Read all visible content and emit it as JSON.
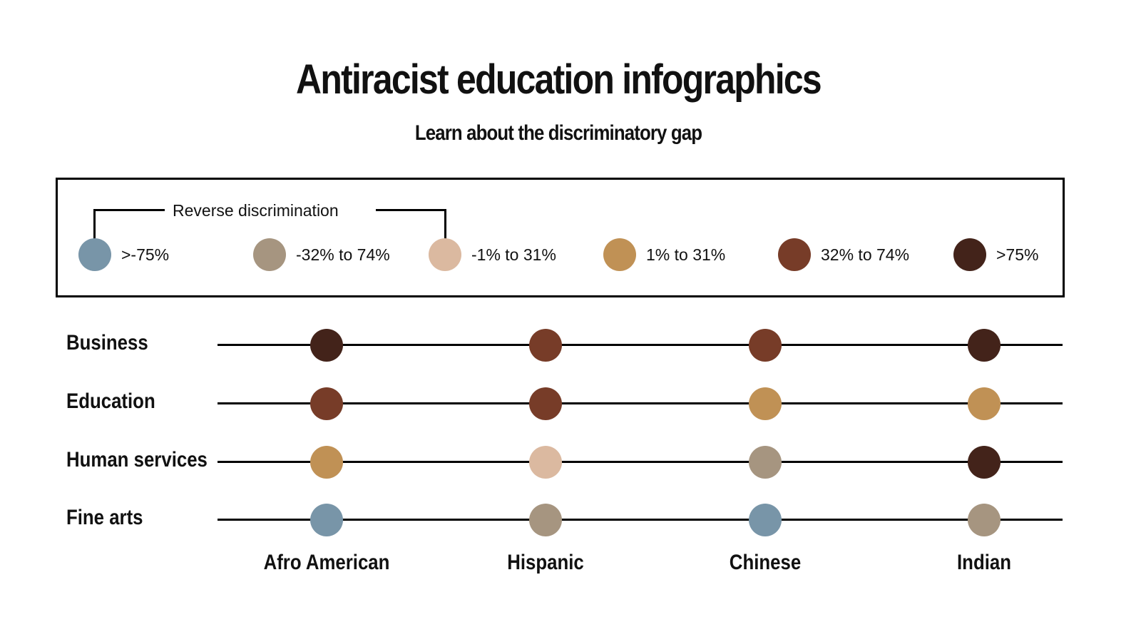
{
  "title": "Antiracist education infographics",
  "subtitle": "Learn about the discriminatory gap",
  "legend": {
    "group_label": "Reverse discrimination",
    "items": [
      {
        "label": ">-75%",
        "color": "#7895a8"
      },
      {
        "label": "-32% to 74%",
        "color": "#a69580"
      },
      {
        "label": "-1% to 31%",
        "color": "#dbb9a0"
      },
      {
        "label": "1% to 31%",
        "color": "#c09155"
      },
      {
        "label": "32% to 74%",
        "color": "#773c28"
      },
      {
        "label": ">75%",
        "color": "#43231a"
      }
    ]
  },
  "columns": [
    "Afro American",
    "Hispanic",
    "Chinese",
    "Indian"
  ],
  "rows": [
    {
      "label": "Business",
      "levels": [
        ">75%",
        "32% to 74%",
        "32% to 74%",
        ">75%"
      ]
    },
    {
      "label": "Education",
      "levels": [
        "32% to 74%",
        "32% to 74%",
        "1% to 31%",
        "1% to 31%"
      ]
    },
    {
      "label": "Human services",
      "levels": [
        "1% to 31%",
        "-1% to 31%",
        "-32% to 74%",
        ">75%"
      ]
    },
    {
      "label": "Fine arts",
      "levels": [
        ">-75%",
        "-32% to 74%",
        ">-75%",
        "-32% to 74%"
      ]
    }
  ]
}
